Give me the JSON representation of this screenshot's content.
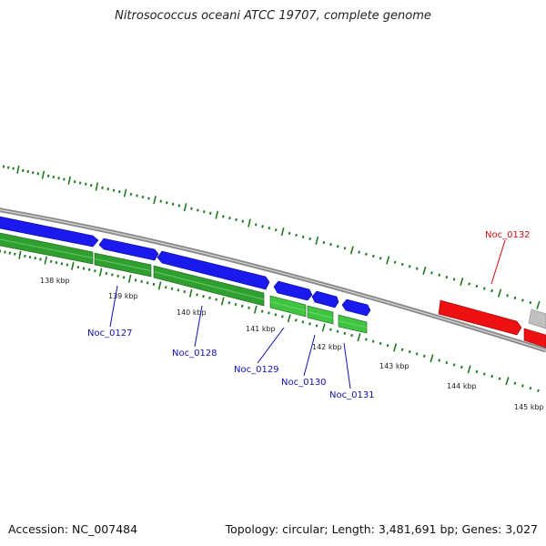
{
  "title": "Nitrosococcus oceani ATCC 19707, complete genome",
  "footer": {
    "accession": "Accession: NC_007484",
    "summary": "Topology: circular; Length: 3,481,691 bp; Genes: 3,027"
  },
  "colors": {
    "forward_strand": "#1a1aee",
    "reverse_strand": "#2a9a2a",
    "highlight": "#ee1111",
    "other": "#bbbbbb",
    "backbone": "#8a8a8a",
    "ticks": "#1f7a1f"
  },
  "scale": {
    "labels": [
      "138 kbp",
      "139 kbp",
      "140 kbp",
      "141 kbp",
      "142 kbp",
      "143 kbp",
      "144 kbp",
      "145 kbp"
    ]
  },
  "genes": [
    {
      "locus": "Noc_0127",
      "color_key": "forward_strand"
    },
    {
      "locus": "Noc_0128",
      "color_key": "forward_strand"
    },
    {
      "locus": "Noc_0129",
      "color_key": "forward_strand"
    },
    {
      "locus": "Noc_0130",
      "color_key": "forward_strand"
    },
    {
      "locus": "Noc_0131",
      "color_key": "forward_strand"
    },
    {
      "locus": "Noc_0132",
      "color_key": "highlight"
    }
  ]
}
